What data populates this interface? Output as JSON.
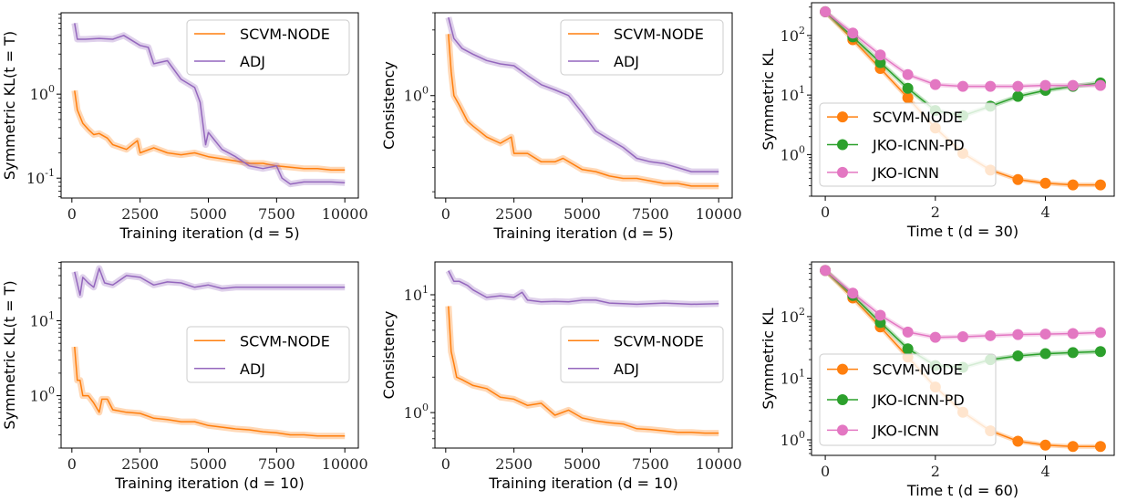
{
  "chart_data": [
    {
      "type": "line",
      "yscale": "log",
      "legend": "upper right",
      "xlabel": "Training iteration (d = 5)",
      "ylabel": "Symmetric KL(t = T)",
      "xticks": [
        0,
        2500,
        5000,
        7500,
        10000
      ],
      "yticks_exp": [
        -1,
        0
      ],
      "xlim": [
        -395,
        10495
      ],
      "ylim": [
        0.058,
        9.3
      ],
      "series": [
        {
          "name": "SCVM-NODE",
          "color": "#ff7f0e",
          "marker": "none",
          "x": [
            100,
            200,
            400,
            600,
            800,
            1000,
            1300,
            1500,
            2000,
            2400,
            2500,
            3000,
            3500,
            4000,
            4500,
            5000,
            5500,
            6000,
            6500,
            7000,
            7500,
            8000,
            8500,
            9000,
            9500,
            10000
          ],
          "y": [
            1.1,
            0.65,
            0.45,
            0.38,
            0.33,
            0.34,
            0.3,
            0.25,
            0.22,
            0.28,
            0.2,
            0.23,
            0.2,
            0.19,
            0.2,
            0.18,
            0.17,
            0.16,
            0.15,
            0.15,
            0.14,
            0.135,
            0.13,
            0.13,
            0.125,
            0.125
          ]
        },
        {
          "name": "ADJ",
          "color": "#9467bd",
          "marker": "none",
          "x": [
            100,
            200,
            500,
            1000,
            1500,
            1900,
            2500,
            2800,
            3000,
            3500,
            4000,
            4500,
            4700,
            4900,
            5000,
            5500,
            6000,
            6500,
            7000,
            7500,
            7700,
            8000,
            8500,
            9000,
            9500,
            10000
          ],
          "y": [
            7,
            4.5,
            4.5,
            4.6,
            4.5,
            5,
            3.8,
            3.6,
            2.3,
            2.5,
            1.5,
            1.2,
            0.8,
            0.25,
            0.35,
            0.22,
            0.18,
            0.14,
            0.13,
            0.14,
            0.1,
            0.085,
            0.09,
            0.09,
            0.09,
            0.088
          ]
        }
      ]
    },
    {
      "type": "line",
      "yscale": "log",
      "legend": "upper right",
      "xlabel": "Training iteration (d = 5)",
      "ylabel": "Consistency",
      "xticks": [
        0,
        2500,
        5000,
        7500,
        10000
      ],
      "yticks_exp": [
        0
      ],
      "xlim": [
        -395,
        10495
      ],
      "ylim": [
        0.18,
        4.0
      ],
      "series": [
        {
          "name": "SCVM-NODE",
          "color": "#ff7f0e",
          "marker": "none",
          "x": [
            100,
            200,
            300,
            500,
            800,
            1000,
            1500,
            2000,
            2400,
            2500,
            3000,
            3500,
            4000,
            4300,
            5000,
            5500,
            6000,
            6500,
            7000,
            7500,
            8000,
            8500,
            9000,
            9500,
            10000
          ],
          "y": [
            2.8,
            1.5,
            1.0,
            0.85,
            0.65,
            0.6,
            0.5,
            0.45,
            0.5,
            0.38,
            0.38,
            0.33,
            0.33,
            0.35,
            0.29,
            0.28,
            0.26,
            0.25,
            0.25,
            0.24,
            0.23,
            0.23,
            0.22,
            0.22,
            0.22
          ]
        },
        {
          "name": "ADJ",
          "color": "#9467bd",
          "marker": "none",
          "x": [
            100,
            300,
            600,
            1000,
            1500,
            2000,
            2500,
            3000,
            3500,
            4000,
            4500,
            5000,
            5500,
            6000,
            6500,
            7000,
            7500,
            8000,
            8500,
            9000,
            9500,
            10000
          ],
          "y": [
            3.7,
            2.6,
            2.2,
            2.0,
            1.8,
            1.7,
            1.65,
            1.4,
            1.2,
            1.1,
            1.0,
            0.75,
            0.55,
            0.48,
            0.42,
            0.35,
            0.33,
            0.32,
            0.3,
            0.28,
            0.28,
            0.28
          ]
        }
      ]
    },
    {
      "type": "line",
      "yscale": "log",
      "legend": "center left",
      "xlabel": "Time t (d = 30)",
      "ylabel": "Symmetric KL",
      "xticks": [
        0,
        2,
        4
      ],
      "yticks_exp": [
        0,
        1,
        2
      ],
      "xlim": [
        -0.25,
        5.25
      ],
      "ylim": [
        0.2,
        355
      ],
      "series": [
        {
          "name": "SCVM-NODE",
          "color": "#ff7f0e",
          "marker": "circle",
          "x": [
            0,
            0.5,
            1,
            1.5,
            2,
            2.5,
            3,
            3.5,
            4,
            4.5,
            5
          ],
          "y": [
            250,
            85,
            28,
            9,
            2.8,
            1.05,
            0.55,
            0.38,
            0.33,
            0.31,
            0.31
          ]
        },
        {
          "name": "JKO-ICNN-PD",
          "color": "#2ca02c",
          "marker": "circle",
          "x": [
            0,
            0.5,
            1,
            1.5,
            2,
            2.5,
            3,
            3.5,
            4,
            4.5,
            5
          ],
          "y": [
            250,
            95,
            35,
            13,
            5.5,
            4.5,
            6.5,
            9.5,
            12,
            14,
            16
          ]
        },
        {
          "name": "JKO-ICNN",
          "color": "#e377c2",
          "marker": "circle",
          "x": [
            0,
            0.5,
            1,
            1.5,
            2,
            2.5,
            3,
            3.5,
            4,
            4.5,
            5
          ],
          "y": [
            250,
            110,
            47,
            22,
            15,
            14,
            14,
            14,
            14.5,
            14.5,
            14.5
          ]
        }
      ]
    },
    {
      "type": "line",
      "yscale": "log",
      "legend": "center right",
      "xlabel": "Training iteration (d = 10)",
      "ylabel": "Symmetric KL(t = T)",
      "xticks": [
        0,
        2500,
        5000,
        7500,
        10000
      ],
      "yticks_exp": [
        0,
        1
      ],
      "xlim": [
        -395,
        10495
      ],
      "ylim": [
        0.2,
        61
      ],
      "series": [
        {
          "name": "SCVM-NODE",
          "color": "#ff7f0e",
          "marker": "none",
          "x": [
            100,
            200,
            300,
            400,
            600,
            800,
            1000,
            1100,
            1300,
            1500,
            2000,
            2500,
            3000,
            3500,
            4000,
            4500,
            5000,
            5500,
            6000,
            6500,
            7000,
            7500,
            8000,
            8500,
            9000,
            9500,
            10000
          ],
          "y": [
            4.5,
            1.6,
            1.6,
            1.0,
            1.0,
            0.8,
            0.6,
            0.9,
            0.9,
            0.65,
            0.6,
            0.58,
            0.5,
            0.48,
            0.45,
            0.45,
            0.4,
            0.38,
            0.36,
            0.35,
            0.33,
            0.32,
            0.3,
            0.3,
            0.29,
            0.29,
            0.29
          ]
        },
        {
          "name": "ADJ",
          "color": "#9467bd",
          "marker": "none",
          "x": [
            100,
            300,
            400,
            600,
            800,
            1000,
            1200,
            1500,
            2000,
            2500,
            3000,
            3500,
            4000,
            4500,
            5000,
            5500,
            6000,
            6500,
            7000,
            8000,
            9000,
            10000
          ],
          "y": [
            45,
            22,
            38,
            32,
            28,
            50,
            32,
            30,
            40,
            38,
            30,
            33,
            32,
            28,
            30,
            27,
            28,
            28,
            28,
            28,
            28,
            28
          ]
        }
      ]
    },
    {
      "type": "line",
      "yscale": "log",
      "legend": "center right",
      "xlabel": "Training iteration (d = 10)",
      "ylabel": "Consistency",
      "xticks": [
        0,
        2500,
        5000,
        7500,
        10000
      ],
      "yticks_exp": [
        0,
        1
      ],
      "xlim": [
        -395,
        10495
      ],
      "ylim": [
        0.5,
        19
      ],
      "series": [
        {
          "name": "SCVM-NODE",
          "color": "#ff7f0e",
          "marker": "none",
          "x": [
            100,
            200,
            300,
            400,
            600,
            1000,
            1500,
            2000,
            2500,
            3000,
            3500,
            4000,
            4500,
            5000,
            5500,
            6000,
            6500,
            7000,
            7500,
            8000,
            8500,
            9000,
            9500,
            10000
          ],
          "y": [
            8,
            3.3,
            2.6,
            2.0,
            1.9,
            1.7,
            1.6,
            1.35,
            1.3,
            1.15,
            1.2,
            0.95,
            1.05,
            0.9,
            0.85,
            0.82,
            0.8,
            0.73,
            0.72,
            0.7,
            0.68,
            0.68,
            0.67,
            0.67
          ]
        },
        {
          "name": "ADJ",
          "color": "#9467bd",
          "marker": "none",
          "x": [
            100,
            300,
            500,
            800,
            1000,
            1500,
            2000,
            2500,
            2800,
            3000,
            3500,
            4000,
            4500,
            5000,
            5500,
            6000,
            7000,
            8000,
            9000,
            10000
          ],
          "y": [
            16,
            13,
            13,
            12,
            11,
            9.5,
            9.8,
            9.5,
            10.5,
            9,
            8.7,
            8.8,
            8.7,
            9,
            9,
            8.5,
            8.3,
            8.5,
            8.3,
            8.4
          ]
        }
      ]
    },
    {
      "type": "line",
      "yscale": "log",
      "legend": "center left",
      "xlabel": "Time t (d = 60)",
      "ylabel": "Symmetric KL",
      "xticks": [
        0,
        2,
        4
      ],
      "yticks_exp": [
        0,
        1,
        2
      ],
      "xlim": [
        -0.25,
        5.25
      ],
      "ylim": [
        0.56,
        770
      ],
      "series": [
        {
          "name": "SCVM-NODE",
          "color": "#ff7f0e",
          "marker": "circle",
          "x": [
            0,
            0.5,
            1,
            1.5,
            2,
            2.5,
            3,
            3.5,
            4,
            4.5,
            5
          ],
          "y": [
            560,
            200,
            68,
            22,
            7.2,
            2.8,
            1.4,
            0.95,
            0.82,
            0.78,
            0.78
          ]
        },
        {
          "name": "JKO-ICNN-PD",
          "color": "#2ca02c",
          "marker": "circle",
          "x": [
            0,
            0.5,
            1,
            1.5,
            2,
            2.5,
            3,
            3.5,
            4,
            4.5,
            5
          ],
          "y": [
            560,
            220,
            80,
            30,
            16,
            15,
            20,
            23,
            25,
            26,
            27
          ]
        },
        {
          "name": "JKO-ICNN",
          "color": "#e377c2",
          "marker": "circle",
          "x": [
            0,
            0.5,
            1,
            1.5,
            2,
            2.5,
            3,
            3.5,
            4,
            4.5,
            5
          ],
          "y": [
            560,
            240,
            105,
            56,
            46,
            47,
            49,
            51,
            52,
            53,
            55
          ]
        }
      ]
    }
  ]
}
